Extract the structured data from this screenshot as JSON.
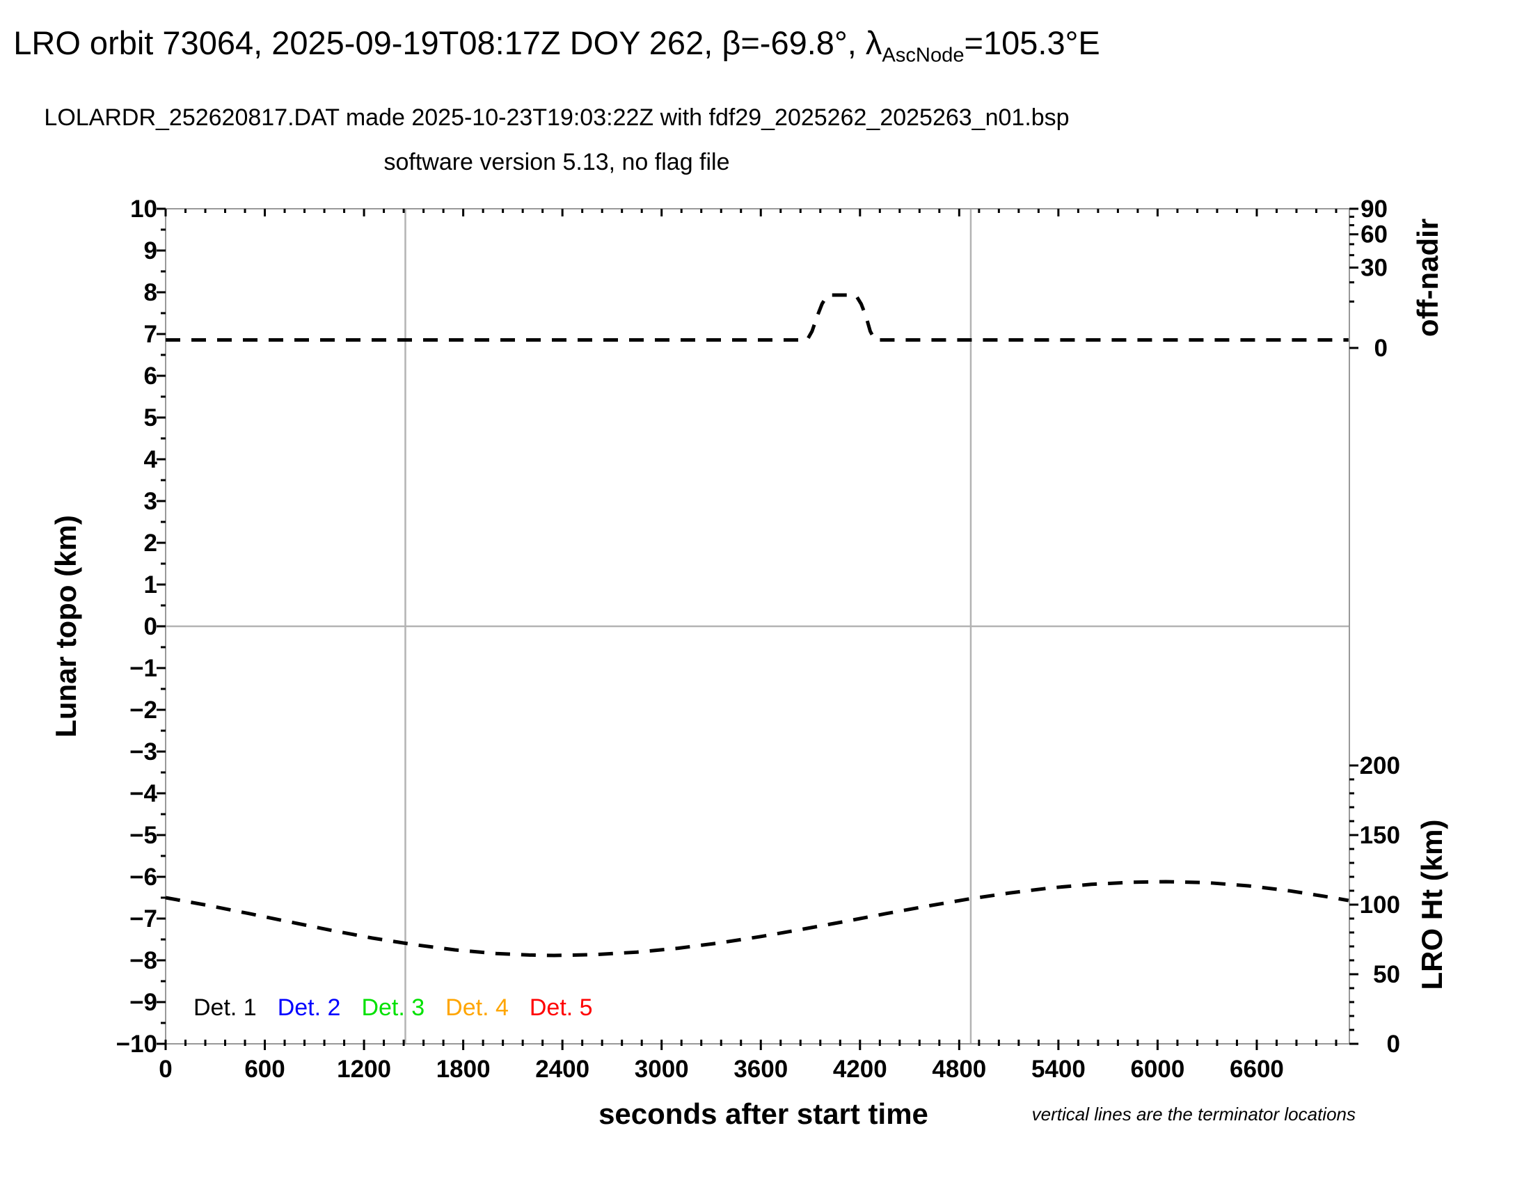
{
  "header": {
    "title_pre": "LRO orbit 73064, 2025-09-19T08:17Z DOY 262, β=-69.8°, λ",
    "title_sub": "AscNode",
    "title_post": "=105.3°E",
    "subtitle_line1": "LOLARDR_252620817.DAT made 2025-10-23T19:03:22Z with fdf29_2025262_2025263_n01.bsp",
    "subtitle_line2": "software version 5.13, no flag file"
  },
  "footnote": "vertical lines are the terminator locations",
  "legend": {
    "items": [
      {
        "label": "Det. 1",
        "color": "#000000"
      },
      {
        "label": "Det. 2",
        "color": "#0000ff"
      },
      {
        "label": "Det. 3",
        "color": "#00e100"
      },
      {
        "label": "Det. 4",
        "color": "#ffa500"
      },
      {
        "label": "Det. 5",
        "color": "#ff0000"
      }
    ]
  },
  "chart_data": {
    "type": "line",
    "title": "LRO orbit 73064, 2025-09-19T08:17Z DOY 262, βAscNode=-69.8°, λAscNode=105.3°E",
    "x_axis": {
      "label": "seconds after start time",
      "min": 0,
      "max": 7160,
      "major_tick": 600,
      "minor_tick": 120,
      "tick_labels": [
        "0",
        "600",
        "1200",
        "1800",
        "2400",
        "3000",
        "3600",
        "4200",
        "4800",
        "5400",
        "6000",
        "6600"
      ]
    },
    "y_left_axis": {
      "label": "Lunar topo (km)",
      "min": -10,
      "max": 10,
      "major_tick": 1,
      "minor_tick": 0.5,
      "tick_labels": [
        "10",
        "9",
        "8",
        "7",
        "6",
        "5",
        "4",
        "3",
        "2",
        "1",
        "0",
        "−1",
        "−2",
        "−3",
        "−4",
        "−5",
        "−6",
        "−7",
        "−8",
        "−9",
        "−10"
      ]
    },
    "y_right_top_axis": {
      "label": "off-nadir",
      "units": "degrees",
      "scale": "sqrt",
      "min": 0,
      "max": 90,
      "major_ticks": [
        90,
        60,
        30,
        0
      ],
      "minor_ticks": [
        80,
        70,
        50,
        40,
        20,
        10
      ],
      "tick_labels": [
        "90",
        "60",
        "30",
        "0"
      ]
    },
    "y_right_bottom_axis": {
      "label": "LRO Ht (km)",
      "min": 0,
      "max": 200,
      "major_tick": 50,
      "minor_tick": 10,
      "tick_labels": [
        "200",
        "150",
        "100",
        "50",
        "0"
      ]
    },
    "reference_lines": {
      "horizontal_topo_zero": 0,
      "terminator_seconds": [
        1450,
        4870
      ]
    },
    "grid": "off",
    "legend_position": "bottom-left-inside",
    "series": [
      {
        "name": "off-nadir angle (deg)",
        "axis": "y_right_top",
        "color": "#000000",
        "style": "dashed",
        "points": [
          [
            0,
            0.3
          ],
          [
            3880,
            0.3
          ],
          [
            3910,
            1.3
          ],
          [
            3940,
            4.5
          ],
          [
            3970,
            9.0
          ],
          [
            3995,
            12.0
          ],
          [
            4012,
            13.0
          ],
          [
            4165,
            13.0
          ],
          [
            4182,
            12.0
          ],
          [
            4207,
            9.0
          ],
          [
            4237,
            4.5
          ],
          [
            4262,
            1.3
          ],
          [
            4290,
            0.3
          ],
          [
            7155,
            0.3
          ]
        ]
      },
      {
        "name": "LRO height (km)",
        "axis": "y_right_bottom",
        "color": "#000000",
        "style": "dashed",
        "points": [
          [
            0,
            105
          ],
          [
            250,
            99.6
          ],
          [
            500,
            93.7
          ],
          [
            750,
            87.6
          ],
          [
            1000,
            81.6
          ],
          [
            1250,
            76.0
          ],
          [
            1500,
            71.3
          ],
          [
            1750,
            67.5
          ],
          [
            2000,
            64.9
          ],
          [
            2200,
            63.8
          ],
          [
            2350,
            63.5
          ],
          [
            2600,
            64.1
          ],
          [
            2850,
            65.9
          ],
          [
            3100,
            68.7
          ],
          [
            3350,
            72.5
          ],
          [
            3600,
            77.1
          ],
          [
            3850,
            82.3
          ],
          [
            4100,
            87.7
          ],
          [
            4350,
            93.4
          ],
          [
            4600,
            98.8
          ],
          [
            4850,
            103.9
          ],
          [
            5100,
            108.3
          ],
          [
            5350,
            112.0
          ],
          [
            5600,
            114.6
          ],
          [
            5850,
            116.1
          ],
          [
            6050,
            116.5
          ],
          [
            6300,
            115.8
          ],
          [
            6550,
            113.5
          ],
          [
            6800,
            109.9
          ],
          [
            7050,
            105.2
          ],
          [
            7155,
            103.0
          ]
        ]
      }
    ]
  }
}
